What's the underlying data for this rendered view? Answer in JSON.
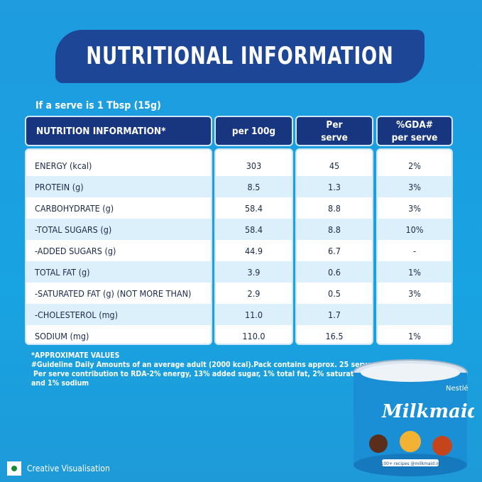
{
  "title": "NUTRITIONAL INFORMATION",
  "serve_note": "If a serve is 1 Tbsp (15g)",
  "headers": [
    "NUTRITION INFORMATION*",
    "per 100g",
    "Per serve",
    "%GDA# per serve"
  ],
  "rows": [
    {
      "name": "ENERGY (kcal)",
      "per100": "303",
      "serve": "45",
      "gda": "2%"
    },
    {
      "name": "PROTEIN (g)",
      "per100": "8.5",
      "serve": "1.3",
      "gda": "3%"
    },
    {
      "name": "CARBOHYDRATE (g)",
      "per100": "58.4",
      "serve": "8.8",
      "gda": "3%"
    },
    {
      "name": "-TOTAL SUGARS (g)",
      "per100": "58.4",
      "serve": "8.8",
      "gda": "10%"
    },
    {
      "name": "-ADDED SUGARS (g)",
      "per100": "44.9",
      "serve": "6.7",
      "gda": "-"
    },
    {
      "name": "TOTAL FAT (g)",
      "per100": "3.9",
      "serve": "0.6",
      "gda": "1%"
    },
    {
      "name": "-SATURATED FAT (g) (NOT MORE THAN)",
      "per100": "2.9",
      "serve": "0.5",
      "gda": "3%"
    },
    {
      "name": "-CHOLESTEROL (mg)",
      "per100": "11.0",
      "serve": "1.7",
      "gda": ""
    },
    {
      "name": "SODIUM (mg)",
      "per100": "110.0",
      "serve": "16.5",
      "gda": "1%"
    }
  ],
  "notes": [
    "*APPROXIMATE VALUES",
    "#Guideline Daily Amounts of an average adult (2000 kcal).Pack contains approx. 25 serves.",
    "Per serve contribution to RDA-2% energy, 13% added sugar, 1% total fat, 2% saturated fat",
    "and 1% sodium"
  ],
  "creative": "Creative Visualisation",
  "product": {
    "brand": "Nestlé",
    "name": "Milkmaid",
    "tagline": "100+ recipes @milkmaid.in"
  },
  "colors": {
    "navy": "#1e4696",
    "header": "#17367f",
    "bg": "#1f9be0",
    "alt_row": "#dcf0fb"
  }
}
